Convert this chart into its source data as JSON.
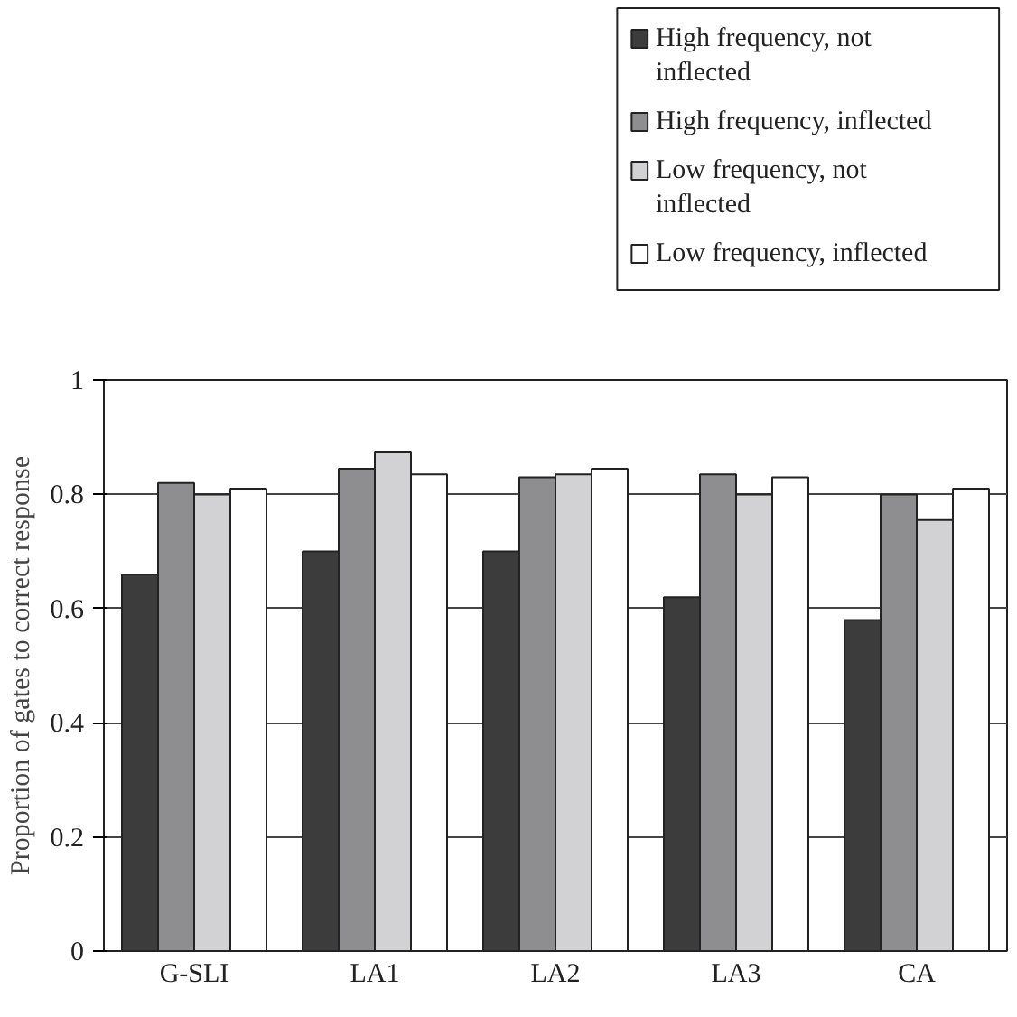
{
  "chart_data": {
    "type": "bar",
    "ylabel": "Proportion of gates to correct response",
    "categories": [
      "G-SLI",
      "LA1",
      "LA2",
      "LA3",
      "CA"
    ],
    "series": [
      {
        "name": "High frequency, not inflected",
        "color": "#3c3c3c",
        "values": [
          0.66,
          0.7,
          0.7,
          0.62,
          0.58
        ]
      },
      {
        "name": "High frequency, inflected",
        "color": "#8e8e90",
        "values": [
          0.82,
          0.845,
          0.83,
          0.835,
          0.8
        ]
      },
      {
        "name": "Low frequency, not inflected",
        "color": "#d2d2d4",
        "values": [
          0.8,
          0.875,
          0.835,
          0.8,
          0.755
        ]
      },
      {
        "name": "Low frequency, inflected",
        "color": "#ffffff",
        "values": [
          0.81,
          0.835,
          0.845,
          0.83,
          0.81
        ]
      }
    ],
    "ylim": [
      0,
      1
    ],
    "yticks": [
      0,
      0.2,
      0.4,
      0.6,
      0.8,
      1
    ],
    "grid": "y",
    "legend": "top right"
  }
}
